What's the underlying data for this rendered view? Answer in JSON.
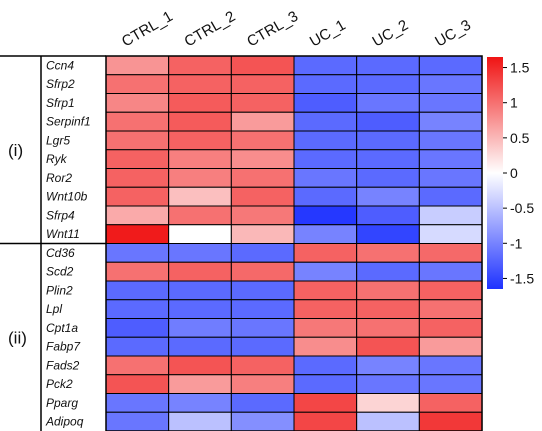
{
  "chart_data": {
    "type": "heatmap",
    "columns": [
      "CTRL_1",
      "CTRL_2",
      "CTRL_3",
      "UC_1",
      "UC_2",
      "UC_3"
    ],
    "groups": [
      {
        "label": "(i)",
        "rows": [
          "Ccn4",
          "Sfrp2",
          "Sfrp1",
          "Serpinf1",
          "Lgr5",
          "Ryk",
          "Ror2",
          "Wnt10b",
          "Sfrp4",
          "Wnt11"
        ],
        "values": [
          [
            0.75,
            1.1,
            1.2,
            -1.2,
            -1.2,
            -1.2
          ],
          [
            1.0,
            1.1,
            1.1,
            -1.2,
            -1.2,
            -1.1
          ],
          [
            0.85,
            1.15,
            1.1,
            -1.3,
            -1.1,
            -1.1
          ],
          [
            1.0,
            1.15,
            0.7,
            -1.2,
            -1.3,
            -1.0
          ],
          [
            1.0,
            1.1,
            1.0,
            -1.2,
            -1.2,
            -1.1
          ],
          [
            1.1,
            0.9,
            0.8,
            -1.2,
            -1.2,
            -1.1
          ],
          [
            1.1,
            0.9,
            1.0,
            -1.1,
            -1.2,
            -1.1
          ],
          [
            1.1,
            0.45,
            1.1,
            -1.2,
            -1.0,
            -1.2
          ],
          [
            0.6,
            1.0,
            0.95,
            -1.6,
            -1.3,
            -0.4
          ],
          [
            1.6,
            0.0,
            0.5,
            -1.0,
            -1.5,
            -0.3
          ]
        ]
      },
      {
        "label": "(ii)",
        "rows": [
          "Cd36",
          "Scd2",
          "Plin2",
          "Lpl",
          "Cpt1a",
          "Fabp7",
          "Fads2",
          "Pck2",
          "Pparg",
          "Adipoq"
        ],
        "values": [
          [
            -1.1,
            -1.1,
            -1.2,
            1.1,
            1.0,
            1.05
          ],
          [
            1.0,
            1.1,
            1.05,
            -1.0,
            -1.2,
            -1.1
          ],
          [
            -1.2,
            -1.2,
            -1.2,
            1.1,
            1.0,
            1.1
          ],
          [
            -1.2,
            -1.2,
            -1.2,
            1.1,
            1.1,
            1.0
          ],
          [
            -1.3,
            -1.05,
            -1.1,
            0.95,
            1.0,
            1.1
          ],
          [
            -1.2,
            -1.2,
            -1.2,
            0.8,
            1.2,
            0.7
          ],
          [
            1.0,
            1.2,
            1.1,
            -1.2,
            -1.0,
            -1.1
          ],
          [
            1.2,
            0.7,
            0.9,
            -1.2,
            -1.1,
            -1.1
          ],
          [
            -1.1,
            -1.0,
            -1.2,
            1.3,
            0.3,
            1.1
          ],
          [
            -1.1,
            -0.5,
            -0.9,
            1.3,
            -0.5,
            1.4
          ]
        ]
      }
    ],
    "colorbar": {
      "ticks": [
        1.5,
        1,
        0.5,
        0,
        -0.5,
        -1,
        -1.5
      ],
      "tick_labels": [
        "1.5",
        "1",
        "0.5",
        "0",
        "-0.5",
        "-1",
        "-1.5"
      ],
      "range": [
        -1.65,
        1.65
      ],
      "low_color": "#1e32ff",
      "mid_color": "#ffffff",
      "high_color": "#f01414"
    },
    "title": "",
    "xlabel": "",
    "ylabel": ""
  }
}
